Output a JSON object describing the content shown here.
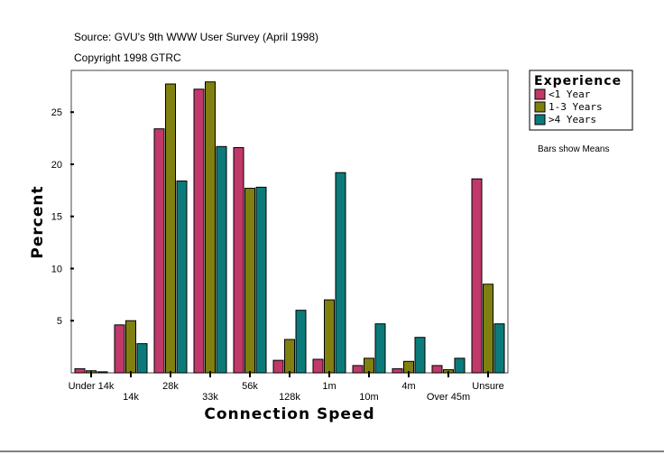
{
  "chart_data": {
    "type": "bar",
    "subtitle_lines": [
      "Source: GVU's 9th WWW User Survey (April 1998)",
      "Copyright 1998 GTRC"
    ],
    "xlabel": "Connection Speed",
    "ylabel": "Percent",
    "ylim": [
      0,
      29
    ],
    "yticks": [
      5,
      10,
      15,
      20,
      25
    ],
    "categories": [
      "Under 14k",
      "14k",
      "28k",
      "33k",
      "56k",
      "128k",
      "1m",
      "10m",
      "4m",
      "Over 45m",
      "Unsure"
    ],
    "legend": {
      "title": "Experience",
      "placement": "right"
    },
    "note": "Bars show Means",
    "series": [
      {
        "name": "<1 Year",
        "color": "#c0396a",
        "values": [
          0.4,
          4.6,
          23.4,
          27.2,
          21.6,
          1.2,
          1.3,
          0.7,
          0.4,
          0.7,
          18.6
        ]
      },
      {
        "name": "1-3 Years",
        "color": "#808010",
        "values": [
          0.2,
          5.0,
          27.7,
          27.9,
          17.7,
          3.2,
          7.0,
          1.4,
          1.1,
          0.3,
          8.5
        ]
      },
      {
        "name": ">4 Years",
        "color": "#0c7a7a",
        "values": [
          0.1,
          2.8,
          18.4,
          21.7,
          17.8,
          6.0,
          19.2,
          4.7,
          3.4,
          1.4,
          4.7
        ]
      }
    ]
  }
}
